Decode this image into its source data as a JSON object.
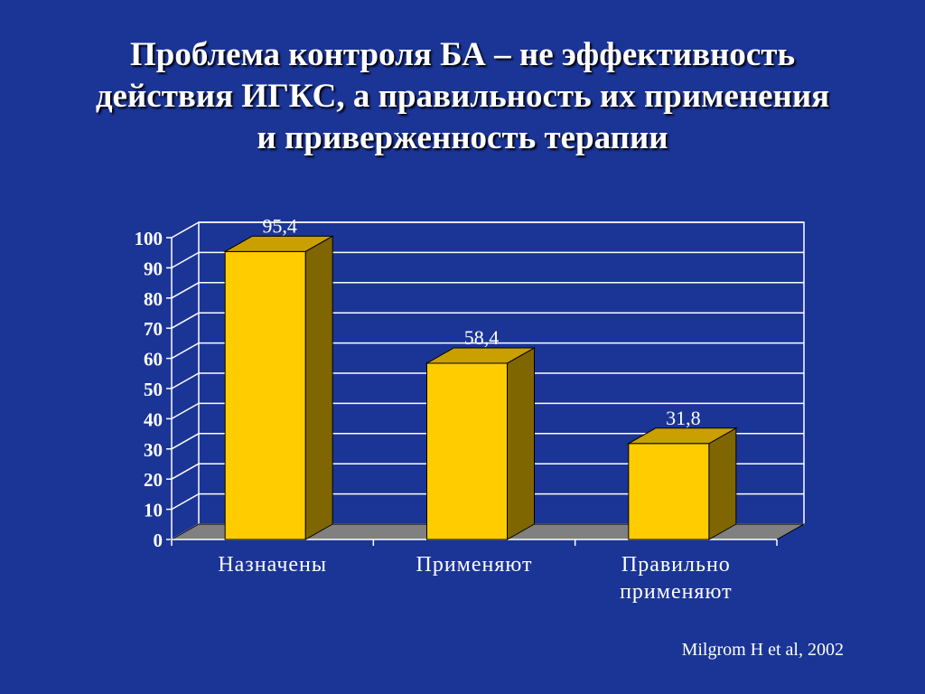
{
  "slide": {
    "title_lines": [
      "Проблема контроля БА – не эффективность",
      "действия ИГКС, а правильность их применения",
      "и приверженность терапии"
    ],
    "source": "Milgrom H et al,  2002"
  },
  "colors": {
    "background": "#1b3596",
    "bar_front": "#ffcc00",
    "bar_top": "#c9a000",
    "bar_side": "#806600",
    "floor": "#808080",
    "grid": "#ffffff"
  },
  "chart_data": {
    "type": "bar",
    "categories": [
      "Назначены",
      "Применяют",
      "Правильно применяют"
    ],
    "category_labels": [
      [
        "Назначены"
      ],
      [
        "Применяют"
      ],
      [
        "Правильно",
        "применяют"
      ]
    ],
    "values": [
      95.4,
      58.4,
      31.8
    ],
    "value_labels": [
      "95,4",
      "58,4",
      "31,8"
    ],
    "ylim": [
      0,
      100
    ],
    "yticks": [
      0,
      10,
      20,
      30,
      40,
      50,
      60,
      70,
      80,
      90,
      100
    ],
    "grid": true,
    "style": "3d-bar",
    "legend": false
  }
}
